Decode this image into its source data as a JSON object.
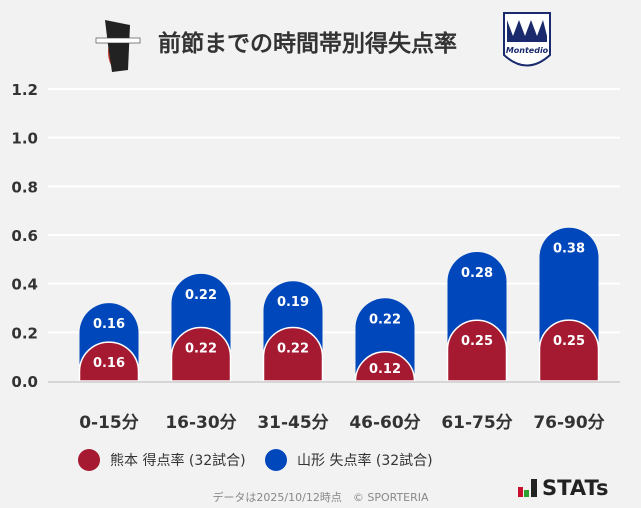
{
  "title": "前節までの時間帯別得失点率",
  "logos": {
    "left": "ROASSO KUMAMOTO",
    "right": "Montedio YAMAGATA"
  },
  "chart_data": {
    "type": "bar",
    "stacked": true,
    "categories": [
      "0-15分",
      "16-30分",
      "31-45分",
      "46-60分",
      "61-75分",
      "76-90分"
    ],
    "series": [
      {
        "name": "熊本 得点率 (32試合)",
        "color": "#a51931",
        "values": [
          0.16,
          0.22,
          0.22,
          0.12,
          0.25,
          0.25
        ]
      },
      {
        "name": "山形 失点率 (32試合)",
        "color": "#0047bb",
        "values": [
          0.16,
          0.22,
          0.19,
          0.22,
          0.28,
          0.38
        ]
      }
    ],
    "ylim": [
      0,
      1.2
    ],
    "yticks": [
      "0.0",
      "0.2",
      "0.4",
      "0.6",
      "0.8",
      "1.0",
      "1.2"
    ],
    "grid": true,
    "legend": "bottom"
  },
  "footer": "データは2025/10/12時点　© SPORTERIA",
  "brand": "STATs"
}
